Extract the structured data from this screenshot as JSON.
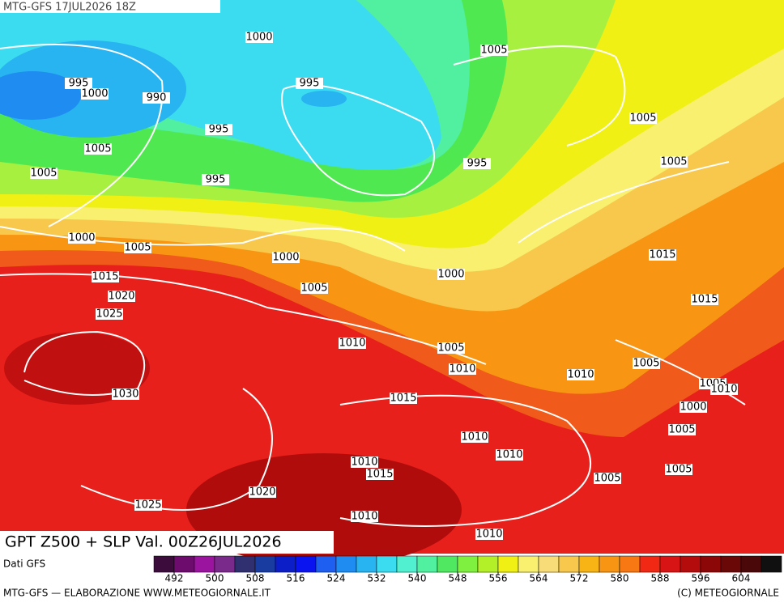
{
  "header": {
    "title": "MTG-GFS 17JUL2026 18Z"
  },
  "map": {
    "caption": "GPT Z500 + SLP Val. 00Z26JUL2026",
    "isobar_labels": [
      "1000",
      "1005",
      "995",
      "1000",
      "995",
      "990",
      "995",
      "1005",
      "1005",
      "1005",
      "995",
      "1005",
      "995",
      "1000",
      "1005",
      "1000",
      "1015",
      "1015",
      "1000",
      "1005",
      "1020",
      "1015",
      "1025",
      "1010",
      "1005",
      "1005",
      "1010",
      "1010",
      "1005",
      "1010",
      "1030",
      "1015",
      "1000",
      "1005",
      "1010",
      "1010",
      "1010",
      "1015",
      "1005",
      "1005",
      "1020",
      "1025",
      "1010",
      "1010"
    ]
  },
  "legend": {
    "source": "Dati GFS",
    "range": [
      488,
      612
    ],
    "ticks": [
      492,
      500,
      508,
      516,
      524,
      532,
      540,
      548,
      556,
      564,
      572,
      580,
      588,
      596,
      604
    ],
    "colors": [
      "#3c0c3c",
      "#6e0c6e",
      "#9a14a0",
      "#7a2a8a",
      "#303070",
      "#183ca0",
      "#0c1ec8",
      "#0a14f0",
      "#1e5ef0",
      "#1e8cf0",
      "#28b4f0",
      "#3cdcf0",
      "#50f0d0",
      "#50f0a0",
      "#50e860",
      "#80f040",
      "#b4f028",
      "#f0f014",
      "#f8f06e",
      "#f8dc78",
      "#f8c84c",
      "#f8b414",
      "#f89614",
      "#f87814",
      "#f02814",
      "#d81414",
      "#b40c0c",
      "#8c0808",
      "#6a0808",
      "#4a0808",
      "#101010"
    ]
  },
  "footer": {
    "left": "MTG-GFS — ELABORAZIONE WWW.METEOGIORNALE.IT",
    "right": "(C) METEOGIORNALE"
  }
}
